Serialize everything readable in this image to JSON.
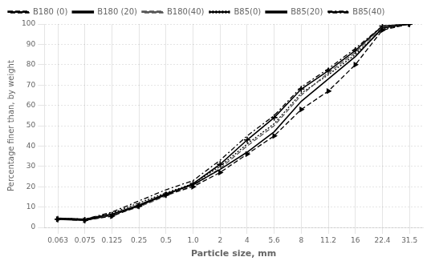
{
  "chart_data": {
    "type": "line",
    "xlabel": "Particle size, mm",
    "ylabel": "Percentage finer than, by weight",
    "categories": [
      "0.063",
      "0.075",
      "0.125",
      "0.25",
      "0.5",
      "1.0",
      "2",
      "4",
      "5.6",
      "8",
      "11.2",
      "16",
      "22.4",
      "31.5"
    ],
    "series": [
      {
        "name": "B180 (0)",
        "color": "#000000",
        "line_style": "dashed",
        "marker": "triangle_right",
        "values": [
          4.0,
          3.5,
          5.5,
          10.5,
          16.0,
          20.0,
          27.0,
          36.0,
          45.0,
          58.0,
          67.0,
          80.0,
          97.0,
          100.0
        ]
      },
      {
        "name": "B180 (20)",
        "color": "#000000",
        "line_style": "solid",
        "values": [
          4.5,
          4.0,
          6.5,
          11.0,
          16.5,
          21.0,
          28.5,
          37.0,
          47.0,
          62.0,
          73.0,
          84.0,
          98.0,
          100.0
        ]
      },
      {
        "name": "B180(40)",
        "color": "#555555",
        "line_style": "dashed",
        "values": [
          4.0,
          3.5,
          6.0,
          10.0,
          15.5,
          20.5,
          29.0,
          40.0,
          50.0,
          65.0,
          76.0,
          86.0,
          98.5,
          100.0
        ]
      },
      {
        "name": "B85(0)",
        "color": "#000000",
        "line_style": "dotted",
        "values": [
          4.5,
          4.0,
          7.0,
          12.0,
          17.0,
          21.5,
          30.0,
          41.0,
          51.0,
          66.0,
          75.0,
          85.0,
          97.5,
          100.0
        ]
      },
      {
        "name": "B85(20)",
        "color": "#000000",
        "line_style": "solid",
        "marker": "plus",
        "values": [
          4.0,
          3.5,
          6.0,
          10.5,
          16.0,
          21.5,
          31.0,
          43.0,
          54.0,
          68.0,
          77.0,
          87.0,
          99.0,
          100.0
        ]
      },
      {
        "name": "B85(40)",
        "color": "#000000",
        "line_style": "dashdot",
        "values": [
          4.5,
          4.0,
          7.5,
          13.0,
          18.5,
          23.0,
          33.0,
          45.0,
          55.0,
          69.0,
          78.0,
          88.0,
          99.0,
          100.0
        ]
      }
    ],
    "ylim": [
      0,
      100
    ],
    "yticks": [
      0,
      10,
      20,
      30,
      40,
      50,
      60,
      70,
      80,
      90,
      100
    ],
    "grid": true,
    "legend": "upper left"
  }
}
